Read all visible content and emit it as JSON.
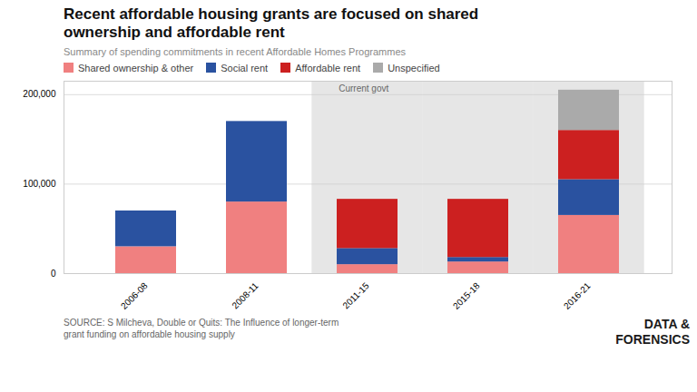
{
  "chart_data": {
    "type": "bar",
    "stacked": true,
    "title": "Recent affordable housing grants are focused on shared\nownership and affordable rent",
    "subtitle": "Summary of spending commitments in recent Affordable Homes Programmes",
    "categories": [
      "2006-08",
      "2008-11",
      "2011-15",
      "2015-18",
      "2016-21"
    ],
    "series": [
      {
        "name": "Shared ownership & other",
        "color": "#F08080",
        "values": [
          30000,
          80000,
          10000,
          13000,
          65000
        ]
      },
      {
        "name": "Social rent",
        "color": "#2A52A0",
        "values": [
          40000,
          90000,
          18000,
          5000,
          40000
        ]
      },
      {
        "name": "Affordable rent",
        "color": "#CC2020",
        "values": [
          0,
          0,
          55000,
          65000,
          55000
        ]
      },
      {
        "name": "Unspecified",
        "color": "#AAAAAA",
        "values": [
          0,
          0,
          0,
          0,
          45000
        ]
      }
    ],
    "ylim": [
      0,
      215000
    ],
    "yticks": [
      0,
      {
        "value": 100000,
        "label": "100,000"
      },
      {
        "value": 200000,
        "label": "200,000"
      }
    ],
    "grid": true,
    "legend": "top",
    "annotations": [
      {
        "text": "Current govt",
        "from": "2011-15",
        "to": "2016-21",
        "color": "#E6E6E6"
      }
    ],
    "source": "SOURCE: S Milcheva, Double or Quits: The Influence of longer-term\ngrant funding on affordable housing supply",
    "watermark": "DATA &\nFORENSICS"
  }
}
